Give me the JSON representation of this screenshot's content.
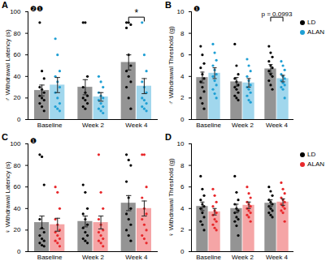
{
  "chart_data": [
    {
      "type": "bar",
      "title": "A",
      "y_label": "♂ Withdrawal Latency (s)",
      "categories": [
        "Baseline",
        "Week 2",
        "Week 4"
      ],
      "ylim": [
        0,
        100
      ],
      "yticks": [
        0,
        20,
        40,
        60,
        80,
        100
      ],
      "series": [
        {
          "name": "LD",
          "color": "#000000",
          "values": [
            27,
            30,
            53
          ],
          "errors": [
            5,
            7,
            7
          ],
          "points": [
            [
              90,
              45,
              38,
              30,
              28,
              25,
              22,
              20,
              18,
              15,
              12,
              8
            ],
            [
              90,
              90,
              40,
              30,
              25,
              22,
              20,
              18,
              15,
              12,
              10
            ],
            [
              90,
              90,
              88,
              85,
              60,
              50,
              45,
              40,
              35,
              30,
              20,
              10
            ]
          ]
        },
        {
          "name": "ALAN",
          "color": "#1e9fd4",
          "values": [
            32,
            21,
            31
          ],
          "errors": [
            7,
            4,
            7
          ],
          "points": [
            [
              75,
              60,
              45,
              40,
              35,
              30,
              25,
              20,
              15,
              12,
              10,
              8
            ],
            [
              40,
              35,
              30,
              25,
              22,
              20,
              18,
              15,
              12,
              10,
              8,
              6
            ],
            [
              90,
              60,
              45,
              35,
              30,
              25,
              20,
              18,
              15,
              12,
              10,
              8
            ]
          ]
        }
      ],
      "annotations": [
        {
          "text": "❷❶"
        },
        {
          "text": "*",
          "category": "Week 4",
          "between": [
            "LD",
            "ALAN"
          ]
        }
      ]
    },
    {
      "type": "bar",
      "title": "B",
      "y_label": "♂ Withdrawal Threshold (g)",
      "categories": [
        "Baseline",
        "Week 2",
        "Week 4"
      ],
      "ylim": [
        0,
        10
      ],
      "yticks": [
        0,
        2,
        4,
        6,
        8,
        10
      ],
      "legend": "top-right",
      "series": [
        {
          "name": "LD",
          "color": "#000000",
          "values": [
            3.9,
            3.5,
            4.7
          ],
          "errors": [
            0.5,
            0.4,
            0.4
          ],
          "points": [
            [
              6.8,
              6.0,
              5.2,
              4.8,
              4.2,
              3.8,
              3.5,
              3.0,
              2.6,
              2.0,
              1.5,
              1.0
            ],
            [
              7.0,
              5.0,
              4.2,
              3.8,
              3.5,
              3.2,
              3.0,
              2.8,
              2.5,
              2.2,
              2.0,
              1.8
            ],
            [
              6.8,
              6.2,
              5.8,
              5.4,
              5.0,
              4.8,
              4.5,
              4.2,
              4.0,
              3.6,
              3.2,
              2.8
            ]
          ]
        },
        {
          "name": "ALAN",
          "color": "#1e9fd4",
          "values": [
            4.3,
            3.4,
            3.8
          ],
          "errors": [
            0.5,
            0.4,
            0.3
          ],
          "points": [
            [
              7.0,
              6.2,
              5.5,
              5.0,
              4.6,
              4.2,
              4.0,
              3.6,
              3.2,
              2.8,
              2.4,
              2.0
            ],
            [
              5.6,
              5.0,
              4.5,
              4.0,
              3.6,
              3.2,
              3.0,
              2.8,
              2.5,
              2.2,
              1.8,
              1.6
            ],
            [
              5.4,
              5.0,
              4.6,
              4.2,
              4.0,
              3.8,
              3.6,
              3.4,
              3.2,
              3.0,
              2.8,
              2.0
            ]
          ]
        }
      ],
      "annotations": [
        {
          "text": "❶"
        },
        {
          "text": "p = 0.0993",
          "category": "Week 4",
          "between": [
            "LD",
            "ALAN"
          ]
        }
      ]
    },
    {
      "type": "bar",
      "title": "C",
      "y_label": "♀ Withdrawal Latency (s)",
      "categories": [
        "Baseline",
        "Week 2",
        "Week 4"
      ],
      "ylim": [
        0,
        100
      ],
      "yticks": [
        0,
        20,
        40,
        60,
        80,
        100
      ],
      "series": [
        {
          "name": "LD",
          "color": "#000000",
          "values": [
            27,
            28,
            45
          ],
          "errors": [
            6,
            5,
            7
          ],
          "points": [
            [
              90,
              88,
              62,
              30,
              22,
              18,
              15,
              12,
              10,
              8,
              6,
              5
            ],
            [
              62,
              55,
              40,
              35,
              30,
              25,
              22,
              18,
              15,
              12,
              10,
              8
            ],
            [
              90,
              85,
              80,
              65,
              50,
              40,
              35,
              30,
              25,
              20,
              15,
              10
            ]
          ]
        },
        {
          "name": "ALAN",
          "color": "#e8282b",
          "values": [
            25,
            27,
            40
          ],
          "errors": [
            6,
            6,
            7
          ],
          "points": [
            [
              60,
              55,
              40,
              30,
              25,
              20,
              18,
              15,
              12,
              10,
              8,
              5
            ],
            [
              90,
              55,
              40,
              30,
              25,
              20,
              18,
              15,
              12,
              10,
              8,
              5
            ],
            [
              90,
              90,
              60,
              50,
              40,
              35,
              30,
              25,
              20,
              15,
              12,
              8
            ]
          ]
        }
      ],
      "annotations": [
        {
          "text": "❶"
        }
      ]
    },
    {
      "type": "bar",
      "title": "D",
      "y_label": "♀ Withdrawal Threshold (g)",
      "categories": [
        "Baseline",
        "Week 2",
        "Week 4"
      ],
      "ylim": [
        0,
        10
      ],
      "yticks": [
        0,
        2,
        4,
        6,
        8,
        10
      ],
      "legend": "top-right",
      "series": [
        {
          "name": "LD",
          "color": "#000000",
          "values": [
            4.2,
            4.0,
            4.5
          ],
          "errors": [
            0.4,
            0.4,
            0.3
          ],
          "points": [
            [
              7.0,
              5.8,
              5.2,
              4.8,
              4.4,
              4.2,
              4.0,
              3.6,
              3.2,
              2.8,
              2.5,
              2.0
            ],
            [
              7.0,
              5.5,
              4.8,
              4.4,
              4.0,
              3.8,
              3.6,
              3.2,
              3.0,
              2.8,
              2.4,
              1.5
            ],
            [
              6.0,
              5.6,
              5.2,
              4.8,
              4.6,
              4.4,
              4.2,
              4.0,
              3.8,
              3.6,
              3.4,
              3.2
            ]
          ]
        },
        {
          "name": "ALAN",
          "color": "#e8282b",
          "values": [
            3.7,
            4.3,
            4.6
          ],
          "errors": [
            0.3,
            0.3,
            0.3
          ],
          "points": [
            [
              5.8,
              5.2,
              4.6,
              4.2,
              3.8,
              3.6,
              3.4,
              3.0,
              2.8,
              2.5,
              2.2,
              2.0
            ],
            [
              6.0,
              5.4,
              5.0,
              4.6,
              4.4,
              4.2,
              4.0,
              3.8,
              3.6,
              3.4,
              3.2,
              2.8
            ],
            [
              6.4,
              5.8,
              5.4,
              5.0,
              4.8,
              4.6,
              4.4,
              4.2,
              4.0,
              3.8,
              3.6,
              2.8
            ]
          ]
        }
      ],
      "annotations": []
    }
  ]
}
